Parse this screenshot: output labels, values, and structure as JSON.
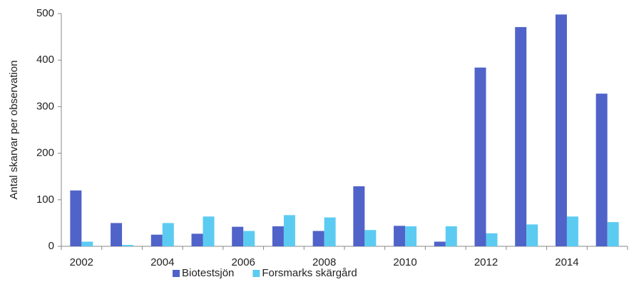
{
  "chart_data": {
    "type": "bar",
    "y_label": "Antal skarvar per observation",
    "categories": [
      "2002",
      null,
      "2004",
      null,
      "2006",
      null,
      "2008",
      null,
      "2010",
      null,
      "2012",
      null,
      "2014",
      null
    ],
    "series": [
      {
        "name": "Biotestsjön",
        "color": "#4f63c9",
        "values": [
          120,
          50,
          25,
          27,
          42,
          43,
          33,
          129,
          44,
          10,
          384,
          471,
          498,
          328
        ]
      },
      {
        "name": "Forsmarks skärgård",
        "color": "#5ccbf1",
        "values": [
          10,
          3,
          50,
          64,
          33,
          67,
          62,
          35,
          43,
          43,
          28,
          47,
          64,
          52
        ]
      }
    ],
    "ylim": [
      0,
      500
    ],
    "yticks": [
      0,
      100,
      200,
      300,
      400,
      500
    ],
    "grid": false,
    "legend": "bottom"
  }
}
